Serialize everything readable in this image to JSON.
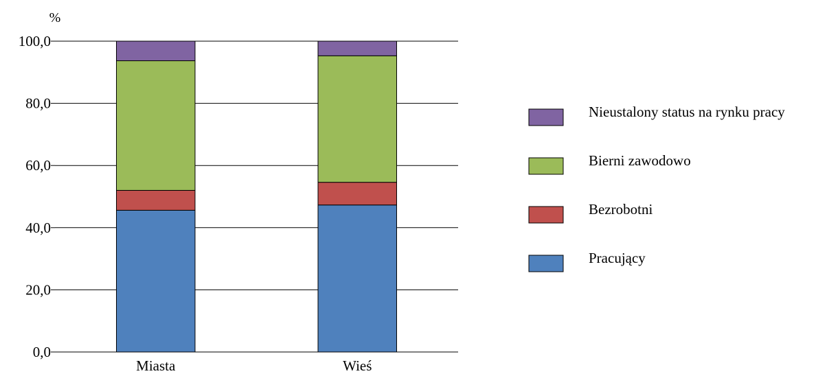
{
  "chart_data": {
    "type": "bar",
    "stacked": true,
    "title": "",
    "xlabel": "",
    "ylabel": "%",
    "ylim": [
      0,
      100
    ],
    "yticks": [
      "0,0",
      "20,0",
      "40,0",
      "60,0",
      "80,0",
      "100,0"
    ],
    "grid": true,
    "legend_position": "right",
    "categories": [
      "Miasta",
      "Wieś"
    ],
    "series": [
      {
        "name": "Pracujący",
        "color": "#4F81BD",
        "values": [
          45.6,
          47.3
        ]
      },
      {
        "name": "Bezrobotni",
        "color": "#C0504D",
        "values": [
          6.4,
          7.3
        ]
      },
      {
        "name": "Bierni zawodowo",
        "color": "#9BBB59",
        "values": [
          41.7,
          40.7
        ]
      },
      {
        "name": "Nieustalony status na rynku pracy",
        "color": "#8064A2",
        "values": [
          6.3,
          4.7
        ]
      }
    ]
  }
}
